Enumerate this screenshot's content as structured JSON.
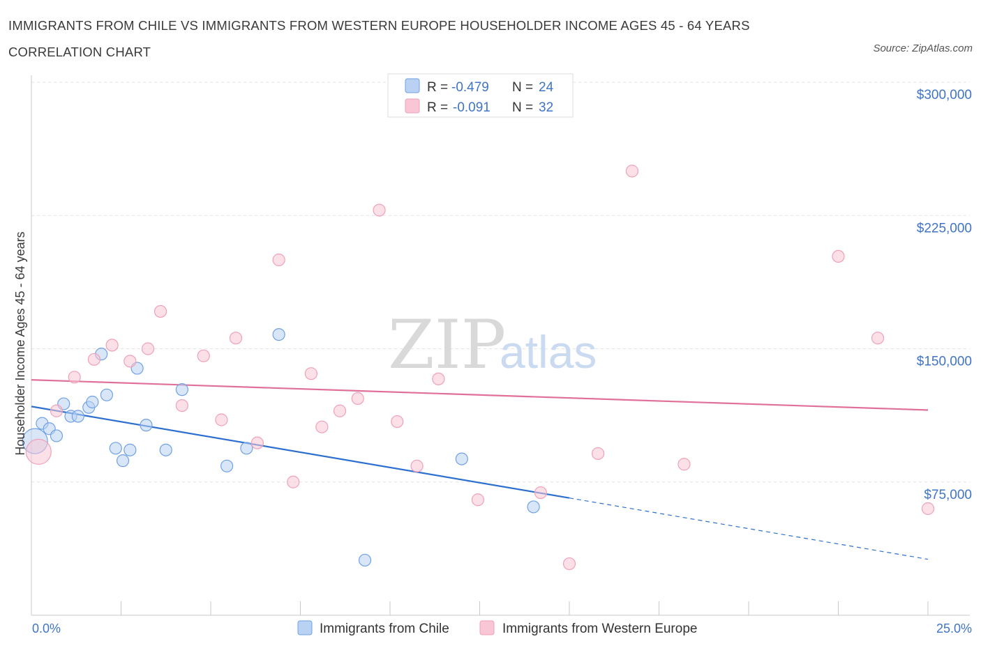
{
  "header": {
    "title": "IMMIGRANTS FROM CHILE VS IMMIGRANTS FROM WESTERN EUROPE HOUSEHOLDER INCOME AGES 45 - 64 YEARS CORRELATION CHART",
    "source": "Source: ZipAtlas.com"
  },
  "watermark": {
    "zip": "ZIP",
    "atlas": "atlas"
  },
  "legend": {
    "rows": [
      {
        "r_label": "R =",
        "r_value": "-0.479",
        "n_label": "N =",
        "n_value": "24"
      },
      {
        "r_label": "R =",
        "r_value": "-0.091",
        "n_label": "N =",
        "n_value": "32"
      }
    ]
  },
  "chart_data": {
    "type": "scatter",
    "title": "IMMIGRANTS FROM CHILE VS IMMIGRANTS FROM WESTERN EUROPE HOUSEHOLDER INCOME AGES 45 - 64 YEARS CORRELATION CHART",
    "xlabel": "",
    "ylabel": "Householder Income Ages 45 - 64 years",
    "xlim": [
      0,
      25
    ],
    "ylim": [
      0,
      300000
    ],
    "x_tick_labels": [
      "0.0%",
      "25.0%"
    ],
    "y_ticks": [
      75000,
      150000,
      225000,
      300000
    ],
    "y_tick_labels": [
      "$75,000",
      "$150,000",
      "$225,000",
      "$300,000"
    ],
    "grid": "horizontal dashed",
    "legend_position": "top-center",
    "colors": {
      "chile": "#6fa1e6",
      "chile_line": "#2d6fd0",
      "we": "#f0a0b8",
      "we_line": "#e0709a"
    },
    "series": [
      {
        "name": "Immigrants from Chile",
        "trend": {
          "x0": 0,
          "y0": 117500,
          "x1": 15,
          "y1": 66000,
          "dashed_to_x": 25,
          "dashed_to_y": 31500
        },
        "points": [
          {
            "x": 0.1,
            "y": 98000,
            "size": "large"
          },
          {
            "x": 0.3,
            "y": 108000
          },
          {
            "x": 0.5,
            "y": 105000
          },
          {
            "x": 0.7,
            "y": 101000
          },
          {
            "x": 0.9,
            "y": 119000
          },
          {
            "x": 1.1,
            "y": 112000
          },
          {
            "x": 1.3,
            "y": 112000
          },
          {
            "x": 1.6,
            "y": 117000
          },
          {
            "x": 1.7,
            "y": 120000
          },
          {
            "x": 1.95,
            "y": 147000
          },
          {
            "x": 2.1,
            "y": 124000
          },
          {
            "x": 2.35,
            "y": 94000
          },
          {
            "x": 2.55,
            "y": 87000
          },
          {
            "x": 2.75,
            "y": 93000
          },
          {
            "x": 2.95,
            "y": 139000
          },
          {
            "x": 3.2,
            "y": 107000
          },
          {
            "x": 3.75,
            "y": 93000
          },
          {
            "x": 4.2,
            "y": 127000
          },
          {
            "x": 5.45,
            "y": 84000
          },
          {
            "x": 6.0,
            "y": 94000
          },
          {
            "x": 6.9,
            "y": 158000
          },
          {
            "x": 9.3,
            "y": 31000
          },
          {
            "x": 12.0,
            "y": 88000
          },
          {
            "x": 14.0,
            "y": 61000
          }
        ]
      },
      {
        "name": "Immigrants from Western Europe",
        "trend": {
          "x0": 0,
          "y0": 132500,
          "x1": 25,
          "y1": 115500
        },
        "points": [
          {
            "x": 0.2,
            "y": 92000,
            "size": "large"
          },
          {
            "x": 0.7,
            "y": 115000
          },
          {
            "x": 1.2,
            "y": 134000
          },
          {
            "x": 1.75,
            "y": 144000
          },
          {
            "x": 2.25,
            "y": 152000
          },
          {
            "x": 2.75,
            "y": 143000
          },
          {
            "x": 3.25,
            "y": 150000
          },
          {
            "x": 3.6,
            "y": 171000
          },
          {
            "x": 4.2,
            "y": 118000
          },
          {
            "x": 4.8,
            "y": 146000
          },
          {
            "x": 5.3,
            "y": 110000
          },
          {
            "x": 5.7,
            "y": 156000
          },
          {
            "x": 6.3,
            "y": 97000
          },
          {
            "x": 6.9,
            "y": 200000
          },
          {
            "x": 7.3,
            "y": 75000
          },
          {
            "x": 7.8,
            "y": 136000
          },
          {
            "x": 8.1,
            "y": 106000
          },
          {
            "x": 8.6,
            "y": 115000
          },
          {
            "x": 9.1,
            "y": 122000
          },
          {
            "x": 9.7,
            "y": 228000
          },
          {
            "x": 10.2,
            "y": 109000
          },
          {
            "x": 10.75,
            "y": 84000
          },
          {
            "x": 11.35,
            "y": 133000
          },
          {
            "x": 12.45,
            "y": 65000
          },
          {
            "x": 14.2,
            "y": 69000
          },
          {
            "x": 15.0,
            "y": 29000
          },
          {
            "x": 15.8,
            "y": 91000
          },
          {
            "x": 16.75,
            "y": 250000
          },
          {
            "x": 18.2,
            "y": 85000
          },
          {
            "x": 22.5,
            "y": 202000
          },
          {
            "x": 23.6,
            "y": 156000
          },
          {
            "x": 25.0,
            "y": 60000
          }
        ]
      }
    ]
  }
}
